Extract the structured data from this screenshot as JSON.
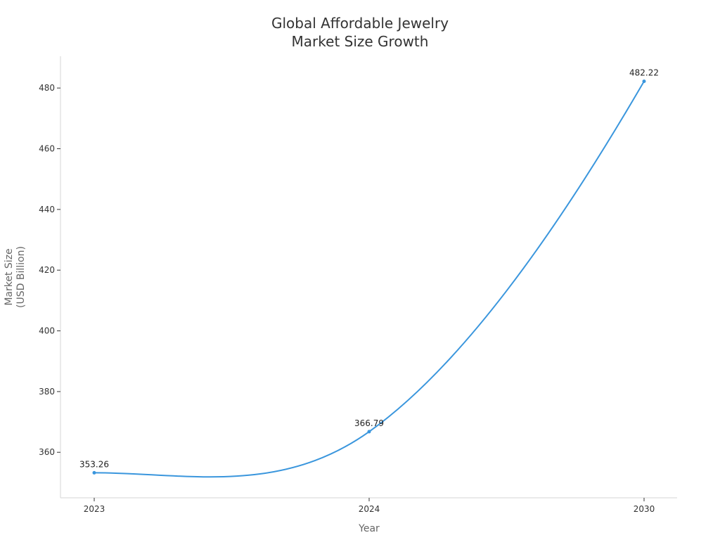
{
  "chart_data": {
    "type": "line",
    "title": [
      "Global Affordable Jewelry",
      "Market Size Growth"
    ],
    "xlabel": "Year",
    "ylabel": [
      "Market Size",
      "(USD Billion)"
    ],
    "categories": [
      "2023",
      "2024",
      "2030"
    ],
    "series": [
      {
        "values": [
          353.26,
          366.79,
          482.22
        ],
        "labels": [
          "353.26",
          "366.79",
          "482.22"
        ],
        "color": "#3a96dd"
      }
    ],
    "yticks": [
      "360",
      "380",
      "400",
      "420",
      "440",
      "460",
      "480"
    ],
    "ylim": [
      345,
      490
    ],
    "grid": false,
    "line_style": "smooth",
    "axis_color": "#d6d6d6"
  }
}
